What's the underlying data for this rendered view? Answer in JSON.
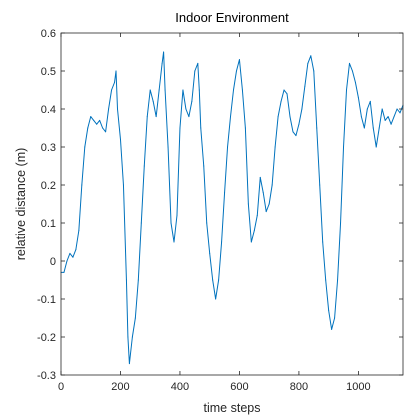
{
  "chart_data": {
    "type": "line",
    "title": "Indoor Environment",
    "xlabel": "time steps",
    "ylabel": "relative distance (m)",
    "xlim": [
      0,
      1150
    ],
    "ylim": [
      -0.3,
      0.6
    ],
    "x_ticks": [
      0,
      200,
      400,
      600,
      800,
      1000
    ],
    "x_tick_labels": [
      "0",
      "200",
      "400",
      "600",
      "800",
      "1000"
    ],
    "y_ticks": [
      -0.3,
      -0.2,
      -0.1,
      0,
      0.1,
      0.2,
      0.3,
      0.4,
      0.5,
      0.6
    ],
    "y_tick_labels": [
      "-0.3",
      "-0.2",
      "-0.1",
      "0",
      "0.1",
      "0.2",
      "0.3",
      "0.4",
      "0.5",
      "0.6"
    ],
    "grid": false,
    "line_color": "#0072BD",
    "series": [
      {
        "x": [
          0,
          10,
          20,
          30,
          40,
          50,
          60,
          70,
          80,
          90,
          100,
          110,
          120,
          130,
          140,
          150,
          160,
          170,
          180,
          185,
          190,
          200,
          210,
          220,
          225,
          230,
          240,
          250,
          260,
          270,
          280,
          290,
          300,
          310,
          320,
          330,
          340,
          345,
          350,
          360,
          370,
          380,
          390,
          400,
          410,
          420,
          430,
          440,
          450,
          460,
          465,
          470,
          480,
          490,
          500,
          510,
          520,
          530,
          540,
          550,
          560,
          570,
          580,
          590,
          600,
          610,
          620,
          630,
          640,
          650,
          660,
          670,
          680,
          690,
          700,
          710,
          720,
          730,
          740,
          750,
          760,
          770,
          780,
          790,
          800,
          810,
          820,
          830,
          840,
          850,
          860,
          870,
          880,
          890,
          900,
          910,
          920,
          930,
          940,
          950,
          960,
          970,
          980,
          990,
          1000,
          1010,
          1020,
          1030,
          1040,
          1050,
          1060,
          1070,
          1080,
          1090,
          1100,
          1110,
          1120,
          1130,
          1140,
          1150
        ],
        "y": [
          -0.03,
          -0.03,
          0.0,
          0.02,
          0.01,
          0.03,
          0.08,
          0.2,
          0.3,
          0.35,
          0.38,
          0.37,
          0.36,
          0.37,
          0.35,
          0.34,
          0.4,
          0.45,
          0.47,
          0.5,
          0.4,
          0.32,
          0.2,
          -0.05,
          -0.2,
          -0.27,
          -0.2,
          -0.15,
          -0.05,
          0.1,
          0.25,
          0.38,
          0.45,
          0.42,
          0.38,
          0.45,
          0.52,
          0.55,
          0.45,
          0.3,
          0.1,
          0.05,
          0.12,
          0.35,
          0.45,
          0.4,
          0.38,
          0.42,
          0.5,
          0.52,
          0.45,
          0.35,
          0.25,
          0.1,
          0.02,
          -0.05,
          -0.1,
          -0.05,
          0.05,
          0.18,
          0.3,
          0.38,
          0.45,
          0.5,
          0.53,
          0.45,
          0.35,
          0.15,
          0.05,
          0.08,
          0.12,
          0.22,
          0.18,
          0.13,
          0.15,
          0.2,
          0.3,
          0.38,
          0.42,
          0.45,
          0.44,
          0.38,
          0.34,
          0.33,
          0.36,
          0.4,
          0.46,
          0.52,
          0.54,
          0.5,
          0.35,
          0.2,
          0.05,
          -0.05,
          -0.13,
          -0.18,
          -0.15,
          -0.05,
          0.1,
          0.3,
          0.45,
          0.52,
          0.5,
          0.47,
          0.43,
          0.38,
          0.35,
          0.4,
          0.42,
          0.35,
          0.3,
          0.35,
          0.4,
          0.37,
          0.38,
          0.36,
          0.38,
          0.4,
          0.39,
          0.41
        ]
      }
    ]
  }
}
